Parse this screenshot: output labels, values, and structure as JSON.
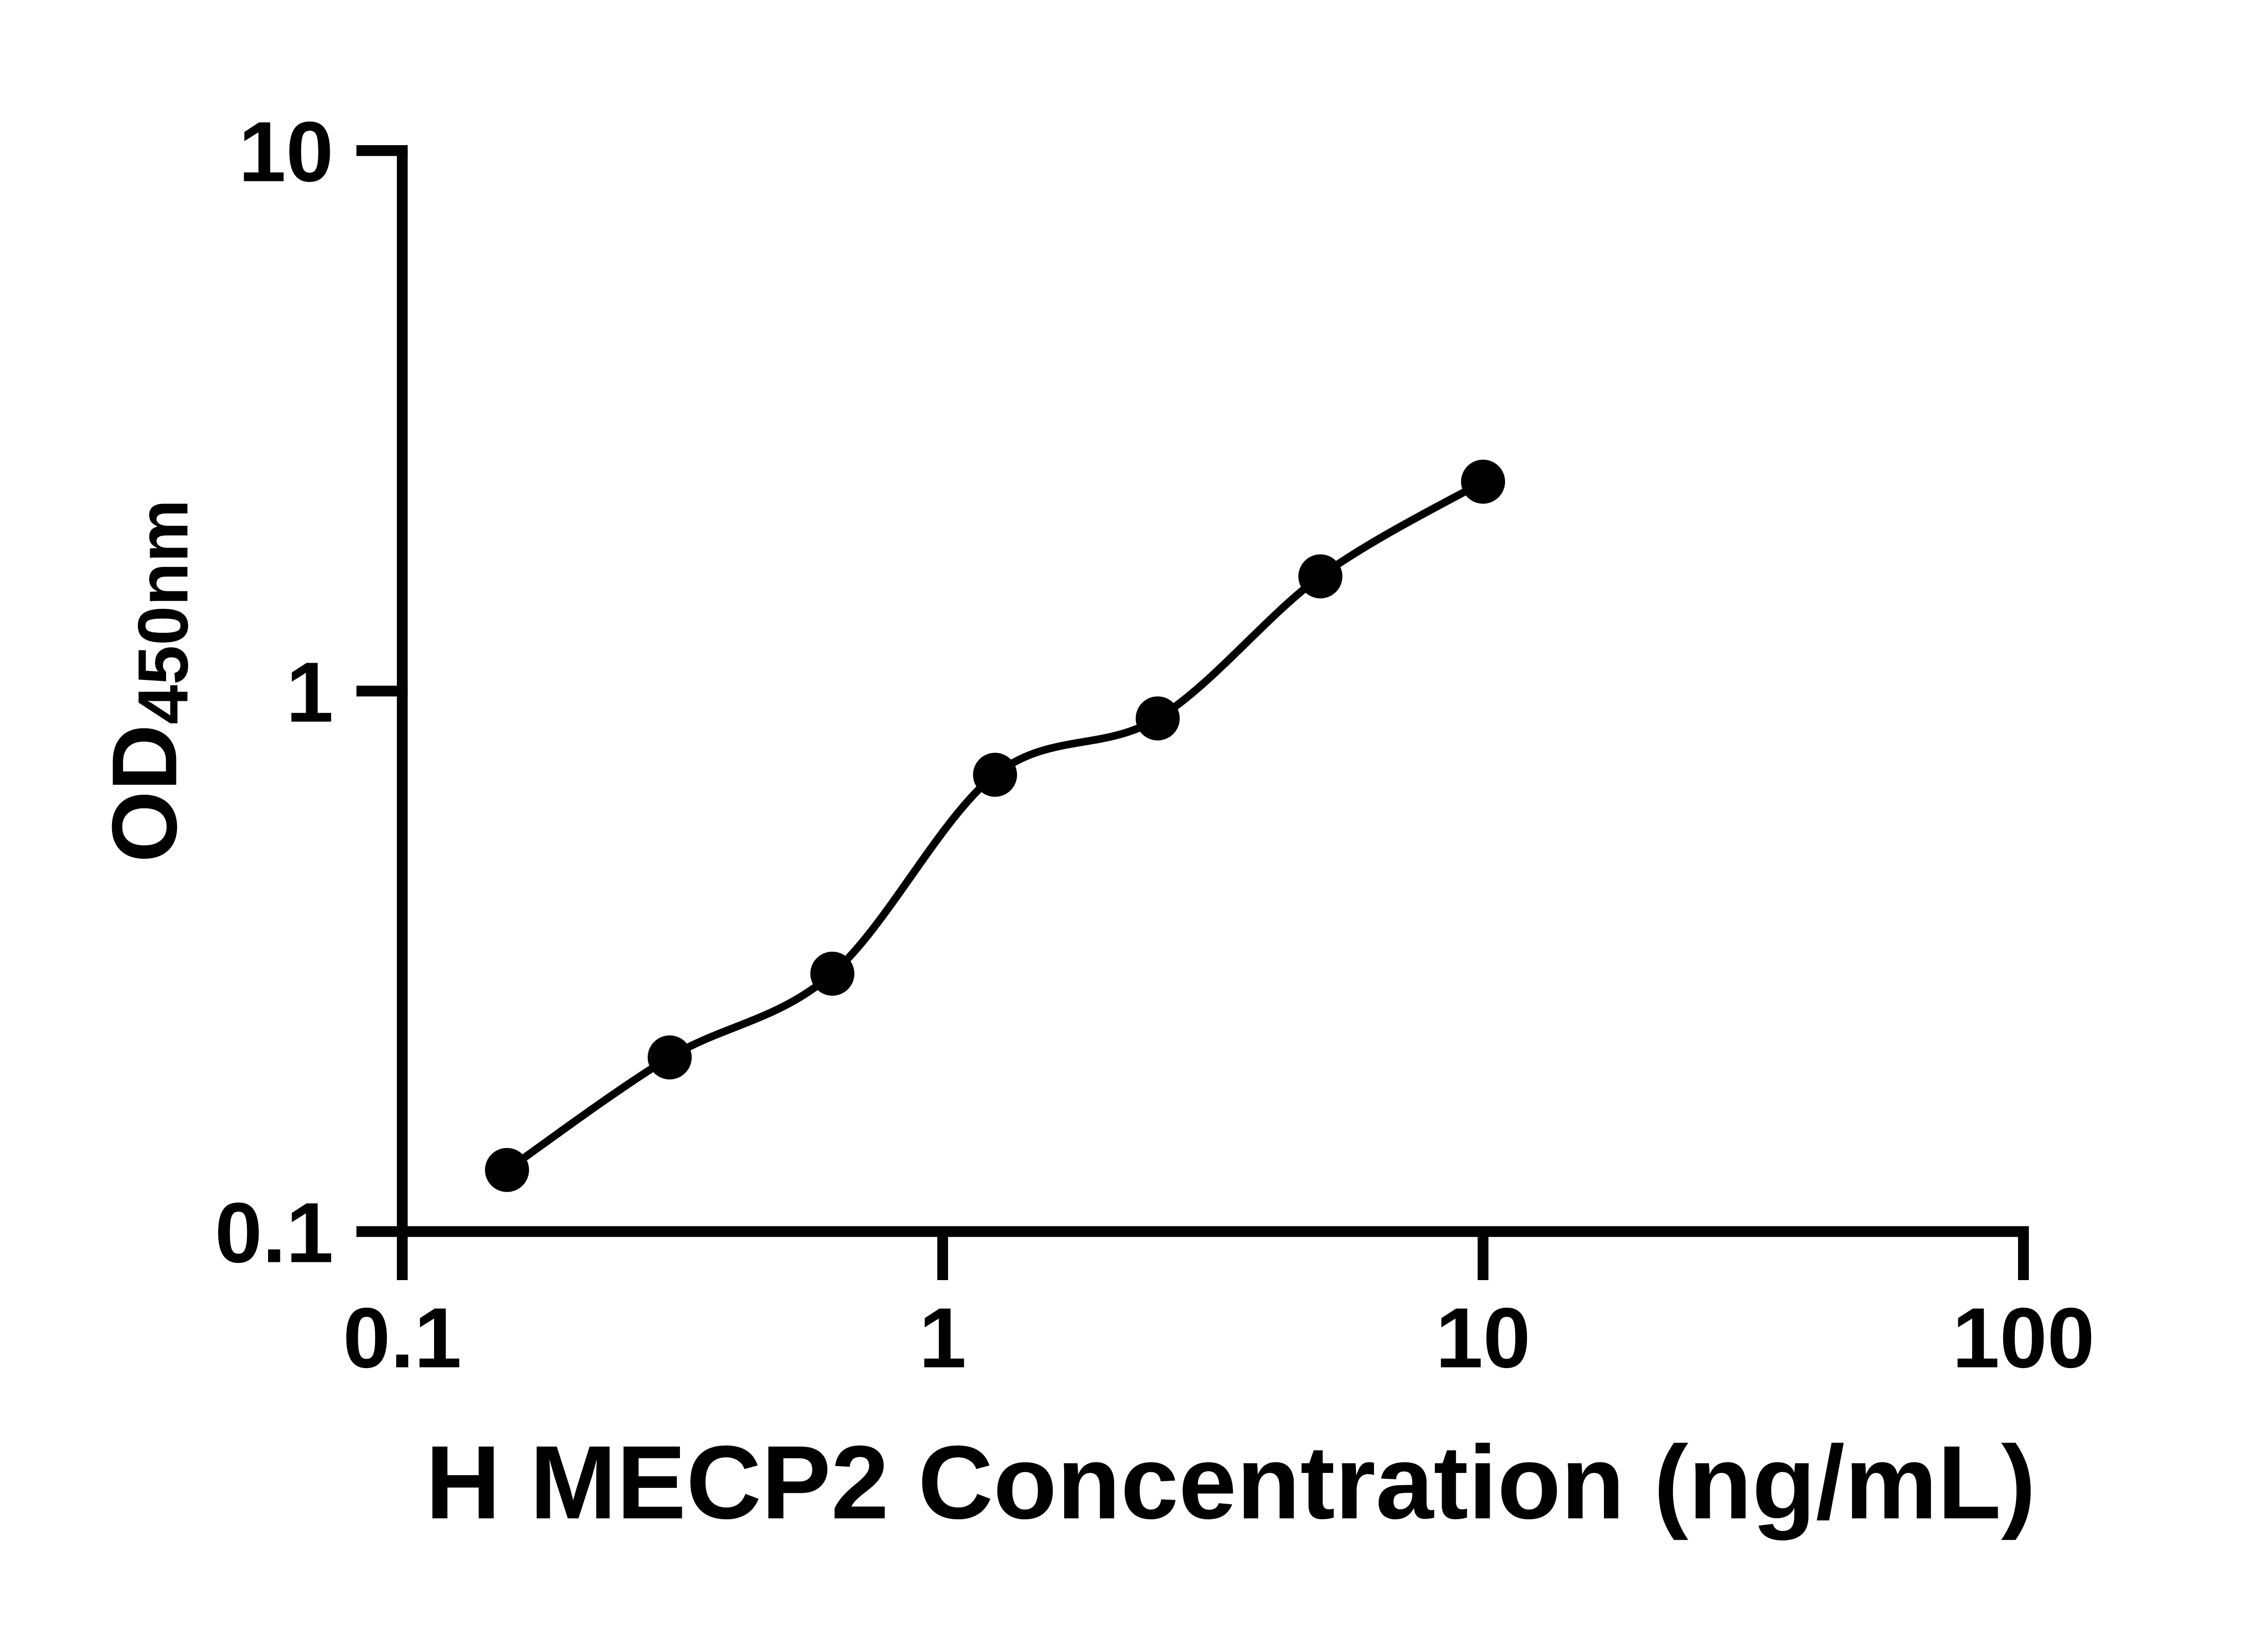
{
  "page": {
    "background_color": "#ffffff",
    "ink_color": "#000000"
  },
  "chart_data": {
    "type": "scatter",
    "title": "",
    "xlabel": "H MECP2 Concentration (ng/mL)",
    "ylabel": "OD450nm",
    "ylabel_main": "OD",
    "ylabel_sub": "450nm",
    "x_scale": "log10",
    "y_scale": "log10",
    "xlim": [
      0.1,
      100
    ],
    "ylim": [
      0.1,
      10
    ],
    "x_ticks": {
      "values": [
        0.1,
        1,
        10,
        100
      ],
      "labels": [
        "0.1",
        "1",
        "10",
        "100"
      ]
    },
    "y_ticks": {
      "values": [
        0.1,
        1,
        10
      ],
      "labels": [
        "10",
        "1",
        "0.1"
      ],
      "order_note": "top-to-bottom: 10, 1, 0.1"
    },
    "grid": false,
    "legend_position": "none",
    "marker": "filled-circle",
    "marker_color": "#000000",
    "line_style": "smooth-fit-curve",
    "line_color": "#000000",
    "series": [
      {
        "x": [
          0.15625,
          0.3125,
          0.625,
          1.25,
          2.5,
          5,
          10
        ],
        "y": [
          0.13,
          0.21,
          0.3,
          0.7,
          0.89,
          1.63,
          2.44
        ]
      }
    ]
  }
}
